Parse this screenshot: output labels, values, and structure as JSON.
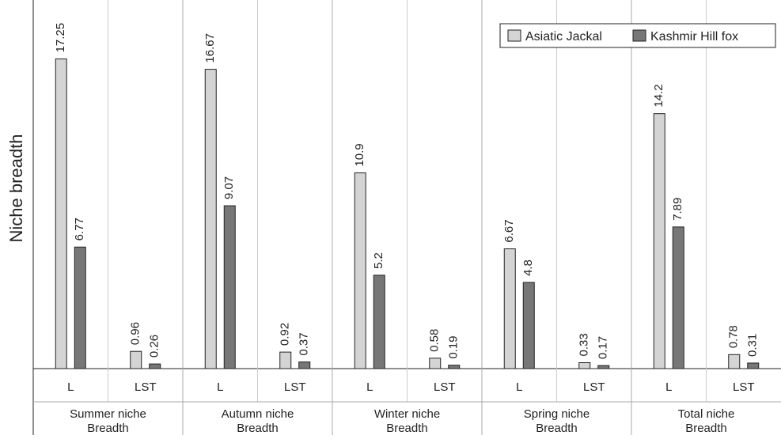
{
  "chart_data": {
    "type": "bar",
    "ylabel": "Niche breadth",
    "ylim": [
      0,
      20
    ],
    "grid": false,
    "legend_position": "top-right",
    "colors": {
      "Asiatic Jackal": "#d4d4d4",
      "Kashmir Hill fox": "#777777",
      "outline": "#222222"
    },
    "groups": [
      {
        "label": "Summer niche Breadth",
        "label_lines": [
          "Summer niche",
          "Breadth"
        ]
      },
      {
        "label": "Autumn niche Breadth",
        "label_lines": [
          "Autumn niche",
          "Breadth"
        ]
      },
      {
        "label": "Winter niche Breadth",
        "label_lines": [
          "Winter niche",
          "Breadth"
        ]
      },
      {
        "label": "Spring niche Breadth",
        "label_lines": [
          "Spring niche",
          "Breadth"
        ]
      },
      {
        "label": "Total niche Breadth",
        "label_lines": [
          "Total niche",
          "Breadth"
        ]
      }
    ],
    "subcategories": [
      "L",
      "LST"
    ],
    "series": [
      {
        "name": "Asiatic Jackal",
        "values": [
          17.25,
          0.96,
          16.67,
          0.92,
          10.9,
          0.58,
          6.67,
          0.33,
          14.2,
          0.78
        ],
        "labels": [
          "17.25",
          "0.96",
          "16.67",
          "0.92",
          "10.9",
          "0.58",
          "6.67",
          "0.33",
          "14.2",
          "0.78"
        ]
      },
      {
        "name": "Kashmir Hill fox",
        "values": [
          6.77,
          0.26,
          9.07,
          0.37,
          5.2,
          0.19,
          4.8,
          0.17,
          7.89,
          0.31
        ],
        "labels": [
          "6.77",
          "0.26",
          "9.07",
          "0.37",
          "5.2",
          "0.19",
          "4.8",
          "0.17",
          "7.89",
          "0.31"
        ]
      }
    ]
  }
}
